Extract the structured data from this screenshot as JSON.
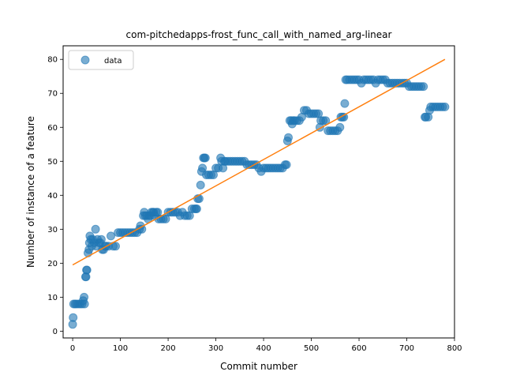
{
  "chart_data": {
    "type": "scatter",
    "title": "com-pitchedapps-frost_func_call_with_named_arg-linear",
    "xlabel": "Commit number",
    "ylabel": "Number of instance of a feature",
    "xlim": [
      -20,
      800
    ],
    "ylim": [
      -2,
      84
    ],
    "xticks": [
      0,
      100,
      200,
      300,
      400,
      500,
      600,
      700,
      800
    ],
    "yticks": [
      0,
      10,
      20,
      30,
      40,
      50,
      60,
      70,
      80
    ],
    "grid": false,
    "legend": {
      "position": "top-left",
      "entries": [
        {
          "label": "data",
          "marker": "circle",
          "color": "#1f77b4"
        }
      ]
    },
    "colors": {
      "points": "#1f77b4",
      "fit_line": "#ff7f0e"
    },
    "series": [
      {
        "name": "data",
        "kind": "scatter",
        "points": [
          [
            0,
            2
          ],
          [
            1,
            4
          ],
          [
            2,
            8
          ],
          [
            5,
            8
          ],
          [
            8,
            8
          ],
          [
            12,
            8
          ],
          [
            16,
            8
          ],
          [
            20,
            8
          ],
          [
            22,
            9
          ],
          [
            24,
            10
          ],
          [
            25,
            8
          ],
          [
            27,
            16
          ],
          [
            28,
            16
          ],
          [
            29,
            18
          ],
          [
            30,
            18
          ],
          [
            32,
            23
          ],
          [
            34,
            24
          ],
          [
            35,
            26
          ],
          [
            36,
            28
          ],
          [
            38,
            27
          ],
          [
            40,
            25
          ],
          [
            42,
            27
          ],
          [
            45,
            26
          ],
          [
            48,
            30
          ],
          [
            50,
            25
          ],
          [
            52,
            27
          ],
          [
            55,
            26
          ],
          [
            58,
            26
          ],
          [
            60,
            27
          ],
          [
            62,
            24
          ],
          [
            65,
            24
          ],
          [
            68,
            25
          ],
          [
            70,
            25
          ],
          [
            75,
            25
          ],
          [
            80,
            28
          ],
          [
            85,
            25
          ],
          [
            90,
            25
          ],
          [
            95,
            29
          ],
          [
            100,
            29
          ],
          [
            105,
            29
          ],
          [
            110,
            29
          ],
          [
            115,
            29
          ],
          [
            120,
            29
          ],
          [
            125,
            29
          ],
          [
            130,
            29
          ],
          [
            135,
            29
          ],
          [
            140,
            30
          ],
          [
            142,
            31
          ],
          [
            145,
            30
          ],
          [
            148,
            34
          ],
          [
            150,
            35
          ],
          [
            152,
            34
          ],
          [
            155,
            34
          ],
          [
            158,
            33
          ],
          [
            160,
            34
          ],
          [
            163,
            34
          ],
          [
            165,
            35
          ],
          [
            168,
            35
          ],
          [
            170,
            35
          ],
          [
            172,
            34
          ],
          [
            175,
            35
          ],
          [
            178,
            35
          ],
          [
            180,
            33
          ],
          [
            185,
            33
          ],
          [
            190,
            33
          ],
          [
            195,
            33
          ],
          [
            200,
            35
          ],
          [
            205,
            35
          ],
          [
            210,
            35
          ],
          [
            215,
            35
          ],
          [
            220,
            35
          ],
          [
            225,
            34
          ],
          [
            230,
            35
          ],
          [
            235,
            34
          ],
          [
            240,
            34
          ],
          [
            245,
            34
          ],
          [
            250,
            36
          ],
          [
            255,
            36
          ],
          [
            258,
            36
          ],
          [
            260,
            36
          ],
          [
            262,
            39
          ],
          [
            265,
            39
          ],
          [
            268,
            43
          ],
          [
            270,
            47
          ],
          [
            272,
            48
          ],
          [
            274,
            51
          ],
          [
            276,
            51
          ],
          [
            278,
            51
          ],
          [
            280,
            46
          ],
          [
            285,
            46
          ],
          [
            290,
            46
          ],
          [
            295,
            46
          ],
          [
            300,
            48
          ],
          [
            305,
            48
          ],
          [
            310,
            51
          ],
          [
            312,
            50
          ],
          [
            315,
            48
          ],
          [
            318,
            50
          ],
          [
            320,
            50
          ],
          [
            325,
            50
          ],
          [
            330,
            50
          ],
          [
            335,
            50
          ],
          [
            340,
            50
          ],
          [
            345,
            50
          ],
          [
            350,
            50
          ],
          [
            355,
            50
          ],
          [
            360,
            50
          ],
          [
            365,
            49
          ],
          [
            370,
            49
          ],
          [
            375,
            49
          ],
          [
            380,
            49
          ],
          [
            385,
            49
          ],
          [
            390,
            48
          ],
          [
            395,
            47
          ],
          [
            400,
            48
          ],
          [
            405,
            48
          ],
          [
            410,
            48
          ],
          [
            415,
            48
          ],
          [
            420,
            48
          ],
          [
            425,
            48
          ],
          [
            430,
            48
          ],
          [
            435,
            48
          ],
          [
            440,
            48
          ],
          [
            445,
            49
          ],
          [
            448,
            49
          ],
          [
            450,
            56
          ],
          [
            452,
            57
          ],
          [
            455,
            62
          ],
          [
            458,
            62
          ],
          [
            460,
            61
          ],
          [
            462,
            62
          ],
          [
            465,
            62
          ],
          [
            470,
            62
          ],
          [
            475,
            62
          ],
          [
            480,
            63
          ],
          [
            485,
            65
          ],
          [
            490,
            65
          ],
          [
            495,
            64
          ],
          [
            500,
            64
          ],
          [
            505,
            64
          ],
          [
            510,
            64
          ],
          [
            515,
            64
          ],
          [
            518,
            60
          ],
          [
            520,
            62
          ],
          [
            525,
            62
          ],
          [
            530,
            62
          ],
          [
            535,
            59
          ],
          [
            540,
            59
          ],
          [
            545,
            59
          ],
          [
            550,
            59
          ],
          [
            555,
            59
          ],
          [
            560,
            60
          ],
          [
            562,
            63
          ],
          [
            565,
            63
          ],
          [
            568,
            63
          ],
          [
            570,
            67
          ],
          [
            572,
            74
          ],
          [
            575,
            74
          ],
          [
            580,
            74
          ],
          [
            585,
            74
          ],
          [
            590,
            74
          ],
          [
            595,
            74
          ],
          [
            600,
            74
          ],
          [
            605,
            73
          ],
          [
            610,
            74
          ],
          [
            615,
            74
          ],
          [
            620,
            74
          ],
          [
            625,
            74
          ],
          [
            630,
            74
          ],
          [
            635,
            73
          ],
          [
            640,
            74
          ],
          [
            645,
            74
          ],
          [
            650,
            74
          ],
          [
            655,
            74
          ],
          [
            660,
            73
          ],
          [
            665,
            73
          ],
          [
            670,
            73
          ],
          [
            675,
            73
          ],
          [
            680,
            73
          ],
          [
            685,
            73
          ],
          [
            690,
            73
          ],
          [
            695,
            73
          ],
          [
            700,
            73
          ],
          [
            705,
            72
          ],
          [
            710,
            72
          ],
          [
            715,
            72
          ],
          [
            720,
            72
          ],
          [
            725,
            72
          ],
          [
            730,
            72
          ],
          [
            735,
            72
          ],
          [
            738,
            63
          ],
          [
            740,
            63
          ],
          [
            745,
            63
          ],
          [
            748,
            65
          ],
          [
            750,
            66
          ],
          [
            755,
            66
          ],
          [
            760,
            66
          ],
          [
            765,
            66
          ],
          [
            770,
            66
          ],
          [
            775,
            66
          ],
          [
            780,
            66
          ]
        ]
      },
      {
        "name": "",
        "kind": "line",
        "points": [
          [
            0,
            19.5
          ],
          [
            780,
            80
          ]
        ]
      }
    ]
  }
}
